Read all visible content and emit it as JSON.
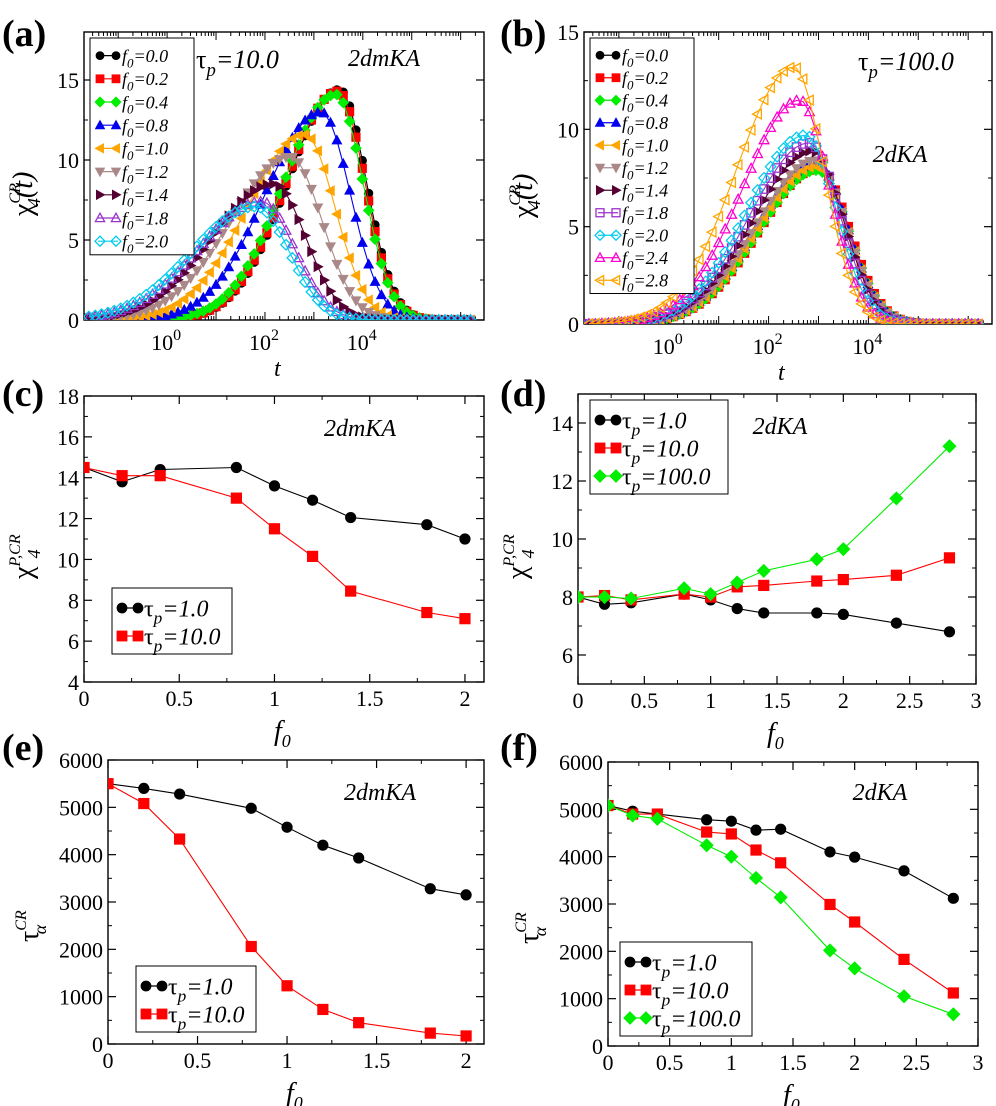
{
  "figure": {
    "panels": [
      {
        "id": "a",
        "label": "(a)"
      },
      {
        "id": "b",
        "label": "(b)"
      },
      {
        "id": "c",
        "label": "(c)"
      },
      {
        "id": "d",
        "label": "(d)"
      },
      {
        "id": "e",
        "label": "(e)"
      },
      {
        "id": "f",
        "label": "(f)"
      }
    ]
  },
  "chart_data": [
    {
      "panel": "a",
      "type": "line",
      "title": "2dmKA",
      "annotation": "τp=10.0",
      "xlabel": "t",
      "ylabel": "χ4^CR(t)",
      "xscale": "log",
      "xlim": [
        0.02,
        3000000
      ],
      "ylim": [
        0,
        18
      ],
      "xticks": [
        {
          "v": 1,
          "label": "10^0"
        },
        {
          "v": 100,
          "label": "10^2"
        },
        {
          "v": 10000,
          "label": "10^4"
        }
      ],
      "yticks": [
        0,
        5,
        10,
        15
      ],
      "legend_position": "top-left",
      "series": [
        {
          "name": "f0=0.0",
          "marker": "circle",
          "color": "#000000",
          "peak": 14.4,
          "tpeak": 3300,
          "width": 0.55
        },
        {
          "name": "f0=0.2",
          "marker": "square",
          "color": "#ff0000",
          "peak": 14.3,
          "tpeak": 3100,
          "width": 0.55
        },
        {
          "name": "f0=0.4",
          "marker": "diamond",
          "color": "#00ee00",
          "peak": 14.1,
          "tpeak": 2800,
          "width": 0.56
        },
        {
          "name": "f0=0.8",
          "marker": "triangle-up",
          "color": "#0000ee",
          "peak": 13.0,
          "tpeak": 1400,
          "width": 0.6
        },
        {
          "name": "f0=1.0",
          "marker": "triangle-left",
          "color": "#ffa500",
          "peak": 11.6,
          "tpeak": 650,
          "width": 0.62
        },
        {
          "name": "f0=1.2",
          "marker": "triangle-down",
          "color": "#aa8888",
          "peak": 10.2,
          "tpeak": 330,
          "width": 0.65
        },
        {
          "name": "f0=1.4",
          "marker": "triangle-right",
          "color": "#550033",
          "peak": 8.5,
          "tpeak": 150,
          "width": 0.66
        },
        {
          "name": "f0=1.8",
          "marker": "triangle-up-open",
          "color": "#9933cc",
          "peak": 7.4,
          "tpeak": 85,
          "width": 0.67
        },
        {
          "name": "f0=2.0",
          "marker": "diamond-open",
          "color": "#00ccee",
          "peak": 7.1,
          "tpeak": 65,
          "width": 0.68
        }
      ]
    },
    {
      "panel": "b",
      "type": "line",
      "title": "2dKA",
      "annotation": "τp=100.0",
      "xlabel": "t",
      "ylabel": "χ4^CR(t)",
      "xscale": "log",
      "xlim": [
        0.02,
        3000000
      ],
      "ylim": [
        0,
        15
      ],
      "xticks": [
        {
          "v": 1,
          "label": "10^0"
        },
        {
          "v": 100,
          "label": "10^2"
        },
        {
          "v": 10000,
          "label": "10^4"
        }
      ],
      "yticks": [
        0,
        5,
        10,
        15
      ],
      "legend_position": "top-left",
      "series": [
        {
          "name": "f0=0.0",
          "marker": "circle",
          "color": "#000000",
          "peak": 8.0,
          "tpeak": 1000,
          "width": 0.62
        },
        {
          "name": "f0=0.2",
          "marker": "square",
          "color": "#ff0000",
          "peak": 8.0,
          "tpeak": 1000,
          "width": 0.62
        },
        {
          "name": "f0=0.4",
          "marker": "diamond",
          "color": "#00ee00",
          "peak": 7.9,
          "tpeak": 950,
          "width": 0.62
        },
        {
          "name": "f0=0.8",
          "marker": "triangle-up",
          "color": "#0000ee",
          "peak": 8.3,
          "tpeak": 900,
          "width": 0.62
        },
        {
          "name": "f0=1.0",
          "marker": "triangle-left",
          "color": "#ffa500",
          "peak": 8.1,
          "tpeak": 900,
          "width": 0.62
        },
        {
          "name": "f0=1.2",
          "marker": "triangle-down",
          "color": "#aa8888",
          "peak": 8.4,
          "tpeak": 850,
          "width": 0.62
        },
        {
          "name": "f0=1.4",
          "marker": "triangle-right",
          "color": "#550033",
          "peak": 8.9,
          "tpeak": 750,
          "width": 0.62
        },
        {
          "name": "f0=1.8",
          "marker": "square-open",
          "color": "#9933cc",
          "peak": 9.3,
          "tpeak": 650,
          "width": 0.62
        },
        {
          "name": "f0=2.0",
          "marker": "diamond-open",
          "color": "#00ccee",
          "peak": 9.7,
          "tpeak": 550,
          "width": 0.61
        },
        {
          "name": "f0=2.4",
          "marker": "triangle-up-open",
          "color": "#ff00cc",
          "peak": 11.5,
          "tpeak": 420,
          "width": 0.6
        },
        {
          "name": "f0=2.8",
          "marker": "triangle-left-open",
          "color": "#ffa500",
          "peak": 13.2,
          "tpeak": 320,
          "width": 0.6
        }
      ]
    },
    {
      "panel": "c",
      "type": "line",
      "title": "2dmKA",
      "xlabel": "f0",
      "ylabel": "χ4^P,CR",
      "xlim": [
        0,
        2.1
      ],
      "ylim": [
        4,
        18
      ],
      "xticks": [
        0,
        0.5,
        1,
        1.5,
        2
      ],
      "yticks": [
        4,
        6,
        8,
        10,
        12,
        14,
        16,
        18
      ],
      "legend_position": "bottom-left",
      "series": [
        {
          "name": "τp=1.0",
          "marker": "circle",
          "color": "#000000",
          "x": [
            0,
            0.2,
            0.4,
            0.8,
            1.0,
            1.2,
            1.4,
            1.8,
            2.0
          ],
          "values": [
            14.5,
            13.8,
            14.4,
            14.5,
            13.6,
            12.9,
            12.05,
            11.7,
            11.0
          ]
        },
        {
          "name": "τp=10.0",
          "marker": "square",
          "color": "#ff0000",
          "x": [
            0,
            0.2,
            0.4,
            0.8,
            1.0,
            1.2,
            1.4,
            1.8,
            2.0
          ],
          "values": [
            14.5,
            14.1,
            14.1,
            13.0,
            11.5,
            10.15,
            8.45,
            7.4,
            7.1
          ]
        }
      ]
    },
    {
      "panel": "d",
      "type": "line",
      "title": "2dKA",
      "xlabel": "f0",
      "ylabel": "χ4^P,CR",
      "xlim": [
        0,
        3
      ],
      "ylim": [
        5,
        15
      ],
      "xticks": [
        0,
        0.5,
        1,
        1.5,
        2,
        2.5,
        3
      ],
      "yticks": [
        6,
        8,
        10,
        12,
        14
      ],
      "legend_position": "top-left",
      "series": [
        {
          "name": "τp=1.0",
          "marker": "circle",
          "color": "#000000",
          "x": [
            0,
            0.2,
            0.4,
            0.8,
            1.0,
            1.2,
            1.4,
            1.8,
            2.0,
            2.4,
            2.8
          ],
          "values": [
            8.0,
            7.75,
            7.8,
            8.1,
            7.9,
            7.6,
            7.45,
            7.45,
            7.4,
            7.1,
            6.8
          ]
        },
        {
          "name": "τp=10.0",
          "marker": "square",
          "color": "#ff0000",
          "x": [
            0,
            0.2,
            0.4,
            0.8,
            1.0,
            1.2,
            1.4,
            1.8,
            2.0,
            2.4,
            2.8
          ],
          "values": [
            8.0,
            8.05,
            7.9,
            8.1,
            8.0,
            8.35,
            8.4,
            8.55,
            8.6,
            8.75,
            9.35
          ]
        },
        {
          "name": "τp=100.0",
          "marker": "diamond",
          "color": "#00ee00",
          "x": [
            0,
            0.2,
            0.4,
            0.8,
            1.0,
            1.2,
            1.4,
            1.8,
            2.0,
            2.4,
            2.8
          ],
          "values": [
            8.0,
            8.0,
            7.95,
            8.3,
            8.1,
            8.5,
            8.9,
            9.3,
            9.65,
            11.4,
            13.2
          ]
        }
      ]
    },
    {
      "panel": "e",
      "type": "line",
      "title": "2dmKA",
      "xlabel": "f0",
      "ylabel": "τα^CR",
      "xlim": [
        0,
        2.1
      ],
      "ylim": [
        0,
        6000
      ],
      "xticks": [
        0,
        0.5,
        1,
        1.5,
        2
      ],
      "yticks": [
        0,
        1000,
        2000,
        3000,
        4000,
        5000,
        6000
      ],
      "legend_position": "bottom-left",
      "series": [
        {
          "name": "τp=1.0",
          "marker": "circle",
          "color": "#000000",
          "x": [
            0,
            0.2,
            0.4,
            0.8,
            1.0,
            1.2,
            1.4,
            1.8,
            2.0
          ],
          "values": [
            5500,
            5400,
            5280,
            4980,
            4580,
            4200,
            3930,
            3280,
            3150
          ]
        },
        {
          "name": "τp=10.0",
          "marker": "square",
          "color": "#ff0000",
          "x": [
            0,
            0.2,
            0.4,
            0.8,
            1.0,
            1.2,
            1.4,
            1.8,
            2.0
          ],
          "values": [
            5500,
            5080,
            4330,
            2060,
            1230,
            730,
            450,
            230,
            170
          ]
        }
      ]
    },
    {
      "panel": "f",
      "type": "line",
      "title": "2dKA",
      "xlabel": "f0",
      "ylabel": "τα^CR",
      "xlim": [
        0,
        3
      ],
      "ylim": [
        0,
        6000
      ],
      "xticks": [
        0,
        0.5,
        1,
        1.5,
        2,
        2.5,
        3
      ],
      "yticks": [
        0,
        1000,
        2000,
        3000,
        4000,
        5000,
        6000
      ],
      "legend_position": "bottom-left",
      "series": [
        {
          "name": "τp=1.0",
          "marker": "circle",
          "color": "#000000",
          "x": [
            0,
            0.2,
            0.4,
            0.8,
            1.0,
            1.2,
            1.4,
            1.8,
            2.0,
            2.4,
            2.8
          ],
          "values": [
            5080,
            4960,
            4900,
            4780,
            4750,
            4560,
            4580,
            4100,
            3990,
            3700,
            3120
          ]
        },
        {
          "name": "τp=10.0",
          "marker": "square",
          "color": "#ff0000",
          "x": [
            0,
            0.2,
            0.4,
            0.8,
            1.0,
            1.2,
            1.4,
            1.8,
            2.0,
            2.4,
            2.8
          ],
          "values": [
            5080,
            4900,
            4900,
            4520,
            4480,
            4140,
            3870,
            2990,
            2620,
            1830,
            1120
          ]
        },
        {
          "name": "τp=100.0",
          "marker": "diamond",
          "color": "#00ee00",
          "x": [
            0,
            0.2,
            0.4,
            0.8,
            1.0,
            1.2,
            1.4,
            1.8,
            2.0,
            2.4,
            2.8
          ],
          "values": [
            5080,
            4870,
            4800,
            4240,
            4000,
            3550,
            3140,
            2020,
            1640,
            1050,
            670
          ]
        }
      ]
    }
  ]
}
